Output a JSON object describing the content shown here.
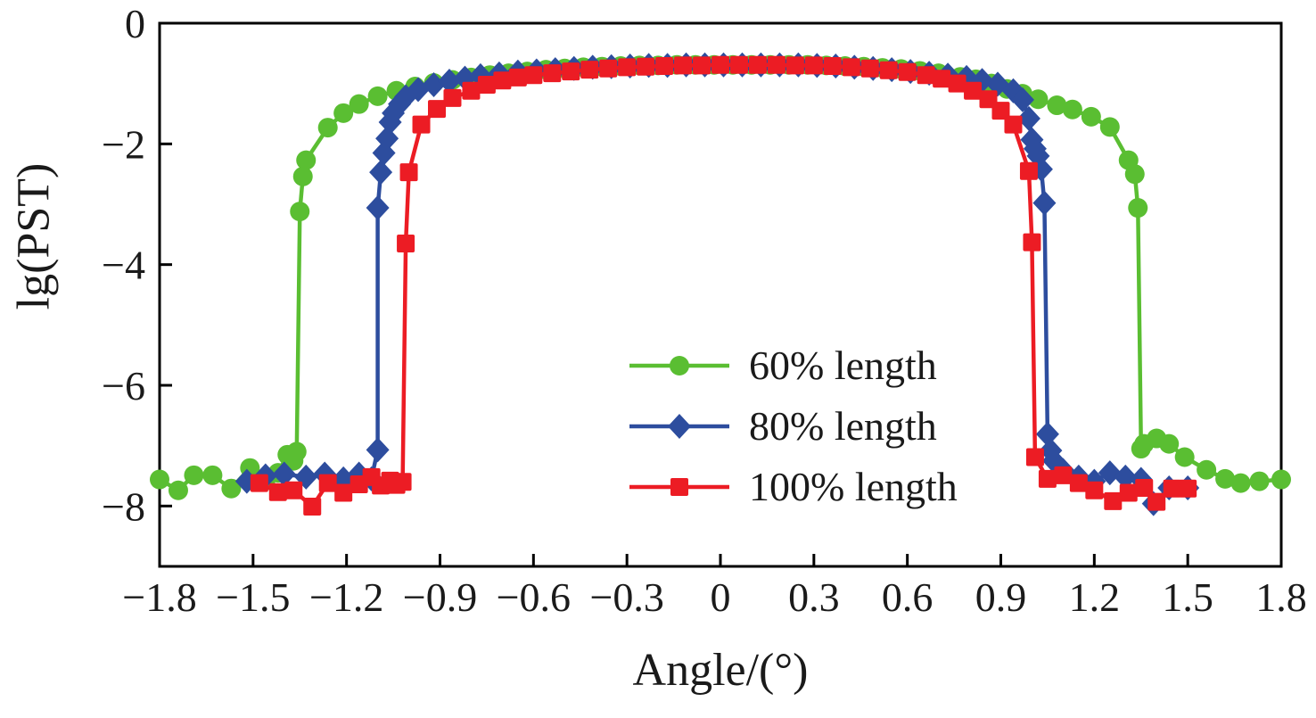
{
  "figure": {
    "background": "#ffffff",
    "text_color": "#1a1a1a",
    "axis_color": "#000000"
  },
  "chart_data": {
    "type": "line",
    "title": "",
    "xlabel": "Angle/(°)",
    "ylabel": "lg(PST)",
    "xlim": [
      -1.8,
      1.8
    ],
    "ylim": [
      -9,
      0
    ],
    "grid": false,
    "legend_position": "inside-center-right-lower",
    "x_ticks": [
      -1.8,
      -1.5,
      -1.2,
      -0.9,
      -0.6,
      -0.3,
      0,
      0.3,
      0.6,
      0.9,
      1.2,
      1.5,
      1.8
    ],
    "x_tick_labels": [
      "−1.8",
      "−1.5",
      "−1.2",
      "−0.9",
      "−0.6",
      "−0.3",
      "0",
      "0.3",
      "0.6",
      "0.9",
      "1.2",
      "1.5",
      "1.8"
    ],
    "y_ticks": [
      0,
      -2,
      -4,
      -6,
      -8
    ],
    "y_tick_labels": [
      "0",
      "−2",
      "−4",
      "−6",
      "−8"
    ],
    "series": [
      {
        "name": "60% length",
        "color": "#5abe32",
        "marker": "circle",
        "points": [
          [
            -1.8,
            -7.56
          ],
          [
            -1.74,
            -7.74
          ],
          [
            -1.69,
            -7.49
          ],
          [
            -1.63,
            -7.49
          ],
          [
            -1.57,
            -7.71
          ],
          [
            -1.51,
            -7.37
          ],
          [
            -1.46,
            -7.58
          ],
          [
            -1.42,
            -7.45
          ],
          [
            -1.39,
            -7.15
          ],
          [
            -1.37,
            -7.25
          ],
          [
            -1.36,
            -7.1
          ],
          [
            -1.35,
            -3.12
          ],
          [
            -1.34,
            -2.54
          ],
          [
            -1.33,
            -2.27
          ],
          [
            -1.26,
            -1.73
          ],
          [
            -1.21,
            -1.49
          ],
          [
            -1.16,
            -1.34
          ],
          [
            -1.1,
            -1.21
          ],
          [
            -1.04,
            -1.12
          ],
          [
            -0.98,
            -1.05
          ],
          [
            -0.92,
            -0.99
          ],
          [
            -0.86,
            -0.94
          ],
          [
            -0.8,
            -0.9
          ],
          [
            -0.74,
            -0.86
          ],
          [
            -0.68,
            -0.83
          ],
          [
            -0.62,
            -0.8
          ],
          [
            -0.56,
            -0.77
          ],
          [
            -0.5,
            -0.75
          ],
          [
            -0.44,
            -0.73
          ],
          [
            -0.38,
            -0.72
          ],
          [
            -0.32,
            -0.71
          ],
          [
            -0.26,
            -0.7
          ],
          [
            -0.2,
            -0.7
          ],
          [
            -0.14,
            -0.69
          ],
          [
            -0.08,
            -0.69
          ],
          [
            -0.02,
            -0.69
          ],
          [
            0.04,
            -0.69
          ],
          [
            0.1,
            -0.69
          ],
          [
            0.16,
            -0.69
          ],
          [
            0.22,
            -0.69
          ],
          [
            0.28,
            -0.69
          ],
          [
            0.34,
            -0.7
          ],
          [
            0.4,
            -0.71
          ],
          [
            0.46,
            -0.72
          ],
          [
            0.52,
            -0.74
          ],
          [
            0.58,
            -0.76
          ],
          [
            0.64,
            -0.79
          ],
          [
            0.7,
            -0.83
          ],
          [
            0.77,
            -0.89
          ],
          [
            0.82,
            -0.93
          ],
          [
            0.87,
            -1.0
          ],
          [
            0.92,
            -1.09
          ],
          [
            0.97,
            -1.17
          ],
          [
            1.02,
            -1.26
          ],
          [
            1.08,
            -1.36
          ],
          [
            1.13,
            -1.43
          ],
          [
            1.19,
            -1.55
          ],
          [
            1.25,
            -1.72
          ],
          [
            1.31,
            -2.27
          ],
          [
            1.33,
            -2.5
          ],
          [
            1.34,
            -3.06
          ],
          [
            1.35,
            -7.05
          ],
          [
            1.36,
            -6.97
          ],
          [
            1.4,
            -6.88
          ],
          [
            1.44,
            -6.97
          ],
          [
            1.49,
            -7.19
          ],
          [
            1.56,
            -7.4
          ],
          [
            1.62,
            -7.55
          ],
          [
            1.67,
            -7.62
          ],
          [
            1.73,
            -7.59
          ],
          [
            1.8,
            -7.56
          ]
        ]
      },
      {
        "name": "80% length",
        "color": "#2d4d9e",
        "marker": "diamond",
        "points": [
          [
            -1.52,
            -7.59
          ],
          [
            -1.46,
            -7.5
          ],
          [
            -1.4,
            -7.47
          ],
          [
            -1.33,
            -7.52
          ],
          [
            -1.27,
            -7.47
          ],
          [
            -1.21,
            -7.55
          ],
          [
            -1.16,
            -7.47
          ],
          [
            -1.12,
            -7.55
          ],
          [
            -1.1,
            -7.07
          ],
          [
            -1.1,
            -3.06
          ],
          [
            -1.09,
            -2.47
          ],
          [
            -1.08,
            -2.15
          ],
          [
            -1.07,
            -1.91
          ],
          [
            -1.06,
            -1.64
          ],
          [
            -1.05,
            -1.49
          ],
          [
            -1.03,
            -1.34
          ],
          [
            -1.01,
            -1.22
          ],
          [
            -0.97,
            -1.1
          ],
          [
            -0.92,
            -1.02
          ],
          [
            -0.87,
            -0.96
          ],
          [
            -0.82,
            -0.91
          ],
          [
            -0.77,
            -0.87
          ],
          [
            -0.71,
            -0.84
          ],
          [
            -0.65,
            -0.81
          ],
          [
            -0.59,
            -0.79
          ],
          [
            -0.53,
            -0.77
          ],
          [
            -0.47,
            -0.75
          ],
          [
            -0.41,
            -0.73
          ],
          [
            -0.35,
            -0.72
          ],
          [
            -0.29,
            -0.71
          ],
          [
            -0.23,
            -0.7
          ],
          [
            -0.17,
            -0.7
          ],
          [
            -0.11,
            -0.69
          ],
          [
            -0.05,
            -0.69
          ],
          [
            0.01,
            -0.69
          ],
          [
            0.07,
            -0.69
          ],
          [
            0.13,
            -0.69
          ],
          [
            0.19,
            -0.69
          ],
          [
            0.25,
            -0.69
          ],
          [
            0.31,
            -0.7
          ],
          [
            0.37,
            -0.71
          ],
          [
            0.43,
            -0.73
          ],
          [
            0.49,
            -0.75
          ],
          [
            0.55,
            -0.77
          ],
          [
            0.61,
            -0.8
          ],
          [
            0.67,
            -0.83
          ],
          [
            0.73,
            -0.86
          ],
          [
            0.79,
            -0.9
          ],
          [
            0.84,
            -0.95
          ],
          [
            0.89,
            -1.01
          ],
          [
            0.94,
            -1.12
          ],
          [
            0.97,
            -1.27
          ],
          [
            0.99,
            -1.58
          ],
          [
            1.0,
            -1.93
          ],
          [
            1.01,
            -2.08
          ],
          [
            1.02,
            -2.2
          ],
          [
            1.03,
            -2.42
          ],
          [
            1.04,
            -2.98
          ],
          [
            1.05,
            -6.81
          ],
          [
            1.06,
            -7.08
          ],
          [
            1.07,
            -7.25
          ],
          [
            1.1,
            -7.41
          ],
          [
            1.15,
            -7.52
          ],
          [
            1.2,
            -7.59
          ],
          [
            1.25,
            -7.45
          ],
          [
            1.3,
            -7.52
          ],
          [
            1.35,
            -7.56
          ],
          [
            1.39,
            -7.96
          ],
          [
            1.44,
            -7.7
          ],
          [
            1.5,
            -7.7
          ]
        ]
      },
      {
        "name": "100% length",
        "color": "#ec1c24",
        "marker": "square",
        "points": [
          [
            -1.48,
            -7.62
          ],
          [
            -1.42,
            -7.77
          ],
          [
            -1.37,
            -7.74
          ],
          [
            -1.31,
            -8.01
          ],
          [
            -1.26,
            -7.62
          ],
          [
            -1.21,
            -7.78
          ],
          [
            -1.16,
            -7.64
          ],
          [
            -1.12,
            -7.52
          ],
          [
            -1.09,
            -7.66
          ],
          [
            -1.06,
            -7.58
          ],
          [
            -1.04,
            -7.65
          ],
          [
            -1.02,
            -7.6
          ],
          [
            -1.01,
            -3.65
          ],
          [
            -1.0,
            -2.47
          ],
          [
            -0.96,
            -1.68
          ],
          [
            -0.91,
            -1.42
          ],
          [
            -0.86,
            -1.24
          ],
          [
            -0.8,
            -1.12
          ],
          [
            -0.75,
            -1.02
          ],
          [
            -0.7,
            -0.95
          ],
          [
            -0.65,
            -0.9
          ],
          [
            -0.6,
            -0.86
          ],
          [
            -0.54,
            -0.83
          ],
          [
            -0.48,
            -0.8
          ],
          [
            -0.42,
            -0.77
          ],
          [
            -0.36,
            -0.75
          ],
          [
            -0.3,
            -0.73
          ],
          [
            -0.24,
            -0.72
          ],
          [
            -0.18,
            -0.71
          ],
          [
            -0.12,
            -0.7
          ],
          [
            -0.06,
            -0.7
          ],
          [
            0.0,
            -0.69
          ],
          [
            0.06,
            -0.69
          ],
          [
            0.12,
            -0.69
          ],
          [
            0.18,
            -0.69
          ],
          [
            0.24,
            -0.7
          ],
          [
            0.3,
            -0.7
          ],
          [
            0.36,
            -0.71
          ],
          [
            0.42,
            -0.73
          ],
          [
            0.48,
            -0.75
          ],
          [
            0.54,
            -0.78
          ],
          [
            0.6,
            -0.81
          ],
          [
            0.66,
            -0.86
          ],
          [
            0.71,
            -0.92
          ],
          [
            0.76,
            -1.0
          ],
          [
            0.81,
            -1.12
          ],
          [
            0.86,
            -1.26
          ],
          [
            0.9,
            -1.45
          ],
          [
            0.94,
            -1.68
          ],
          [
            0.99,
            -2.45
          ],
          [
            1.0,
            -3.63
          ],
          [
            1.01,
            -7.19
          ],
          [
            1.05,
            -7.55
          ],
          [
            1.1,
            -7.49
          ],
          [
            1.15,
            -7.62
          ],
          [
            1.2,
            -7.74
          ],
          [
            1.26,
            -7.92
          ],
          [
            1.31,
            -7.78
          ],
          [
            1.36,
            -7.7
          ],
          [
            1.4,
            -7.93
          ],
          [
            1.45,
            -7.71
          ],
          [
            1.5,
            -7.71
          ]
        ]
      }
    ]
  }
}
